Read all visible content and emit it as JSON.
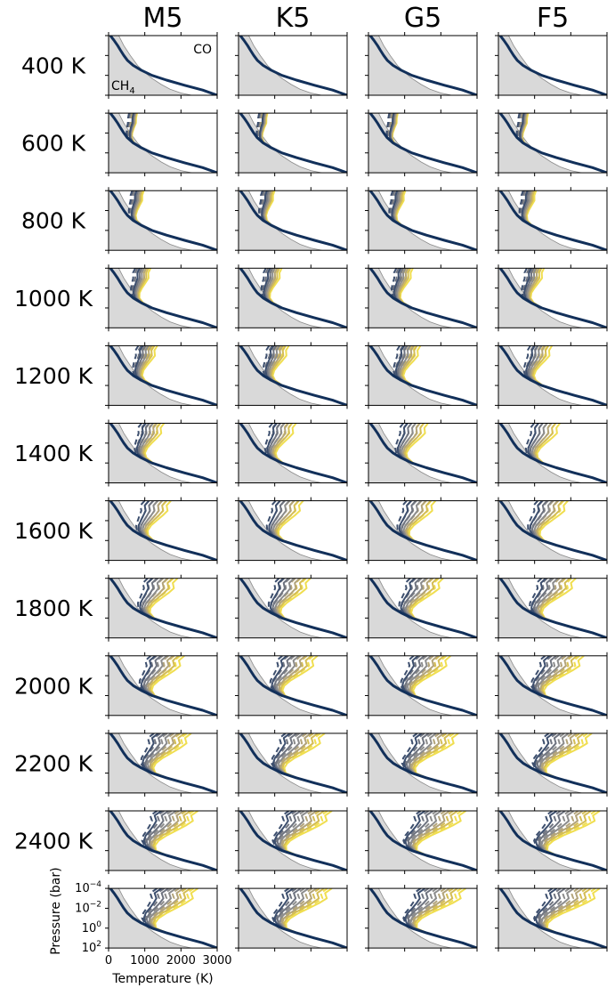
{
  "chart_data": {
    "type": "line",
    "grid": false,
    "columns": [
      "M5",
      "K5",
      "G5",
      "F5"
    ],
    "rows": [
      "400 K",
      "600 K",
      "800 K",
      "1000 K",
      "1200 K",
      "1400 K",
      "1600 K",
      "1800 K",
      "2000 K",
      "2200 K",
      "2400 K"
    ],
    "xlabel": "Temperature (K)",
    "ylabel": "Pressure (bar)",
    "xlim": [
      0,
      3000
    ],
    "ylim": [
      100,
      0.0001
    ],
    "yscale": "log",
    "x_ticks": [
      "0",
      "1000",
      "2000",
      "3000"
    ],
    "y_ticks": [
      {
        "base": "10",
        "exp": "−4",
        "value": 0.0001
      },
      {
        "base": "10",
        "exp": "−2",
        "value": 0.01
      },
      {
        "base": "10",
        "exp": "0",
        "value": 1
      },
      {
        "base": "10",
        "exp": "2",
        "value": 100
      }
    ],
    "annotations": {
      "co_region": "CO",
      "ch4_region_base": "CH",
      "ch4_region_sub": "4"
    },
    "shaded_region_boundary": {
      "description_key": "CH4/CO equal-abundance curve",
      "temperature": [
        280,
        420,
        600,
        800,
        1000,
        1200,
        1450,
        1700,
        2000,
        2300
      ],
      "pressure": [
        0.0001,
        0.001,
        0.01,
        0.1,
        0.5,
        2,
        8,
        25,
        60,
        100
      ]
    },
    "colors": {
      "shade": "#d9d9d9",
      "boundary": "#8a8a8a",
      "cool": "#12305a",
      "mid1": "#3d4f6e",
      "mid2": "#6f7480",
      "gray": "#8c8c8c",
      "tan": "#b3a47a",
      "gold": "#d4bd55",
      "yellow": "#f0de50"
    },
    "series_levels": [
      0,
      0.17,
      0.33,
      0.5,
      0.67,
      0.83,
      1.0
    ],
    "series_styles": [
      "solid",
      "dashed"
    ],
    "profile_notes": "Each panel shows temperature-pressure profiles for a grid of model parameters; colors run from dark navy (baseline) to yellow (hottest upper atmosphere).",
    "bottom_row_columns": [
      "M5",
      "K5",
      "G5",
      "F5"
    ]
  }
}
